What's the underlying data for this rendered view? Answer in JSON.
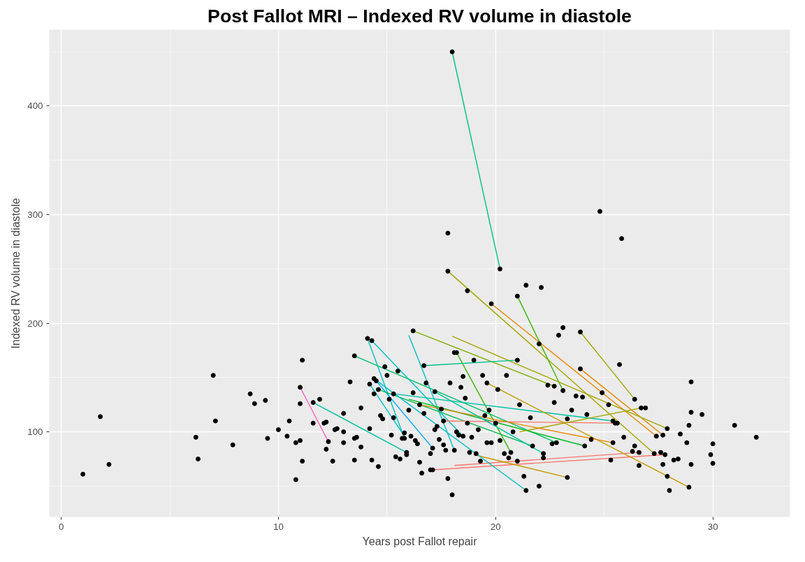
{
  "chart_data": {
    "type": "scatter",
    "title": "Post Fallot MRI – Indexed RV volume in diastole",
    "xlabel": "Years post Fallot repair",
    "ylabel": "Indexed RV volume in diastole",
    "xlim": [
      -0.55,
      33.55
    ],
    "ylim": [
      21.6,
      470.4
    ],
    "xticks": [
      0,
      10,
      20,
      30
    ],
    "yticks": [
      100,
      200,
      300,
      400
    ],
    "grid": true,
    "marker": "none",
    "series": [
      {
        "type": "line",
        "color": "#ff61c3",
        "x": [
          11.0,
          12.3
        ],
        "values": [
          141,
          91
        ]
      },
      {
        "type": "line",
        "color": "#00c08b",
        "x": [
          18.0,
          20.2
        ],
        "values": [
          450,
          250
        ]
      },
      {
        "type": "line",
        "color": "#a3a500",
        "x": [
          17.8,
          27.3
        ],
        "values": [
          248,
          80
        ]
      },
      {
        "type": "line",
        "color": "#e58700",
        "x": [
          19.8,
          27.4
        ],
        "values": [
          218,
          96
        ]
      },
      {
        "type": "line",
        "color": "#39b600",
        "x": [
          21.0,
          23.1
        ],
        "values": [
          225,
          138
        ]
      },
      {
        "type": "line",
        "color": "#a3a500",
        "x": [
          23.9,
          26.4
        ],
        "values": [
          192,
          130
        ]
      },
      {
        "type": "line",
        "color": "#e58700",
        "x": [
          23.9,
          27.7
        ],
        "values": [
          158,
          97
        ]
      },
      {
        "type": "line",
        "color": "#00bfc4",
        "x": [
          14.1,
          15.8
        ],
        "values": [
          186,
          94
        ]
      },
      {
        "type": "line",
        "color": "#00bfc4",
        "x": [
          14.3,
          18.5
        ],
        "values": [
          184,
          96
        ]
      },
      {
        "type": "line",
        "color": "#00bfc4",
        "x": [
          16.0,
          18.1
        ],
        "values": [
          189,
          83
        ]
      },
      {
        "type": "line",
        "color": "#7cae00",
        "x": [
          16.2,
          22.7
        ],
        "values": [
          193,
          142
        ]
      },
      {
        "type": "line",
        "color": "#a3a500",
        "x": [
          18.0,
          27.9
        ],
        "values": [
          188,
          103
        ]
      },
      {
        "type": "line",
        "color": "#39b600",
        "x": [
          18.2,
          20.7
        ],
        "values": [
          173,
          81
        ]
      },
      {
        "type": "line",
        "color": "#00c08b",
        "x": [
          16.7,
          21.0
        ],
        "values": [
          161,
          166
        ]
      },
      {
        "type": "line",
        "color": "#00be67",
        "x": [
          13.5,
          22.8
        ],
        "values": [
          170,
          90
        ]
      },
      {
        "type": "line",
        "color": "#00c1a3",
        "x": [
          11.6,
          15.9
        ],
        "values": [
          127,
          81
        ]
      },
      {
        "type": "line",
        "color": "#00a9ff",
        "x": [
          14.5,
          17.1
        ],
        "values": [
          147,
          85
        ]
      },
      {
        "type": "line",
        "color": "#00bfc4",
        "x": [
          14.2,
          15.8
        ],
        "values": [
          144,
          96
        ]
      },
      {
        "type": "line",
        "color": "#f8766d",
        "x": [
          17.1,
          27.8
        ],
        "values": [
          65,
          79
        ]
      },
      {
        "type": "line",
        "color": "#f8766d",
        "x": [
          18.1,
          26.6
        ],
        "values": [
          69,
          81
        ]
      },
      {
        "type": "line",
        "color": "#c49a00",
        "x": [
          19.0,
          23.3
        ],
        "values": [
          79,
          58
        ]
      },
      {
        "type": "line",
        "color": "#00bb4e",
        "x": [
          14.6,
          21.7
        ],
        "values": [
          139,
          87
        ]
      },
      {
        "type": "line",
        "color": "#00bfc4",
        "x": [
          14.4,
          21.4
        ],
        "values": [
          149,
          46
        ]
      },
      {
        "type": "line",
        "color": "#00c1a3",
        "x": [
          15.3,
          25.4
        ],
        "values": [
          135,
          110
        ]
      },
      {
        "type": "line",
        "color": "#00b81f",
        "x": [
          16.0,
          24.1
        ],
        "values": [
          130,
          87
        ]
      },
      {
        "type": "line",
        "color": "#f8766d",
        "x": [
          17.6,
          25.6
        ],
        "values": [
          110,
          108
        ]
      },
      {
        "type": "line",
        "color": "#c49a00",
        "x": [
          19.6,
          28.9
        ],
        "values": [
          145,
          49
        ]
      },
      {
        "type": "line",
        "color": "#a3a500",
        "x": [
          21.1,
          26.7
        ],
        "values": [
          100,
          122
        ]
      },
      {
        "type": "line",
        "color": "#e58700",
        "x": [
          16.5,
          25.4
        ],
        "values": [
          125,
          90
        ]
      },
      {
        "type": "line",
        "color": "#00c1a3",
        "x": [
          17.2,
          22.2
        ],
        "values": [
          137,
          80
        ]
      },
      {
        "color": "#000000",
        "marker": "circle",
        "x": [
          1.0,
          1.8,
          2.2,
          6.2,
          6.3,
          7.0,
          7.1,
          7.9,
          8.7,
          8.9,
          9.4,
          9.5,
          10.0,
          10.4,
          10.5,
          10.8,
          10.8,
          11.0,
          11.0,
          11.1,
          11.1,
          11.0,
          11.6,
          11.6,
          11.9,
          12.1,
          12.2,
          12.2,
          12.3,
          12.5,
          12.6,
          12.7,
          13.0,
          13.0,
          13.0,
          13.3,
          13.5,
          13.5,
          13.6,
          13.8,
          13.8,
          14.1,
          14.2,
          14.3,
          14.3,
          14.4,
          14.6,
          14.7,
          14.8,
          14.9,
          15.0,
          15.1,
          15.2,
          15.3,
          15.4,
          15.5,
          15.6,
          15.7,
          15.8,
          15.9,
          16.0,
          16.1,
          16.2,
          16.3,
          16.4,
          16.5,
          16.6,
          16.7,
          16.8,
          17.0,
          17.0,
          17.2,
          17.3,
          17.4,
          17.5,
          17.6,
          17.7,
          17.8,
          17.8,
          17.9,
          18.0,
          18.1,
          18.2,
          18.3,
          18.4,
          18.5,
          18.6,
          18.7,
          18.8,
          18.9,
          19.0,
          19.1,
          19.2,
          19.3,
          19.4,
          19.5,
          19.6,
          19.7,
          19.8,
          20.0,
          20.1,
          20.2,
          20.4,
          20.5,
          20.6,
          20.8,
          21.0,
          21.1,
          21.3,
          21.4,
          21.6,
          22.0,
          22.0,
          22.1,
          22.2,
          22.4,
          22.6,
          22.7,
          22.9,
          23.1,
          23.3,
          23.5,
          23.7,
          24.0,
          24.2,
          24.4,
          24.8,
          24.9,
          25.2,
          25.3,
          25.5,
          25.8,
          25.9,
          25.7,
          26.3,
          26.4,
          27.6,
          27.9,
          28.0,
          28.2,
          28.4,
          28.5,
          28.8,
          28.9,
          29.0,
          29.0,
          29.0,
          29.5,
          29.9,
          30.0,
          30.0,
          31.0,
          32.0,
          27.7,
          26.6,
          26.9,
          18.0,
          20.2,
          17.8,
          27.3,
          19.8,
          27.4,
          21.0,
          23.1,
          23.9,
          26.4,
          23.9,
          27.7,
          15.8,
          18.5,
          18.1,
          16.2,
          22.7,
          27.9,
          18.2,
          20.7,
          16.7,
          21.0,
          13.5,
          22.8,
          15.9,
          14.5,
          17.1,
          14.2,
          17.1,
          27.8,
          26.6,
          23.3,
          14.6,
          21.7,
          14.4,
          21.4,
          15.3,
          25.4,
          24.1,
          17.6,
          25.6,
          19.6,
          28.9,
          26.7,
          16.5,
          25.4,
          17.2,
          22.2,
          18.7
        ],
        "values": [
          61,
          114,
          70,
          95,
          75,
          152,
          110,
          88,
          135,
          126,
          129,
          94,
          102,
          96,
          110,
          56,
          90,
          126,
          92,
          73,
          166,
          141,
          108,
          127,
          130,
          108,
          109,
          84,
          91,
          73,
          102,
          103,
          90,
          117,
          100,
          146,
          94,
          74,
          95,
          86,
          122,
          186,
          103,
          184,
          74,
          135,
          68,
          115,
          112,
          160,
          152,
          130,
          97,
          113,
          77,
          156,
          75,
          94,
          99,
          79,
          120,
          96,
          136,
          92,
          89,
          72,
          62,
          117,
          145,
          80,
          65,
          102,
          105,
          93,
          121,
          88,
          83,
          57,
          283,
          145,
          42,
          173,
          100,
          97,
          141,
          151,
          131,
          108,
          81,
          95,
          166,
          80,
          102,
          73,
          152,
          115,
          90,
          120,
          90,
          108,
          139,
          92,
          80,
          152,
          76,
          100,
          73,
          125,
          59,
          235,
          113,
          50,
          181,
          233,
          76,
          143,
          89,
          127,
          189,
          196,
          112,
          120,
          133,
          132,
          116,
          93,
          303,
          136,
          125,
          74,
          108,
          278,
          95,
          162,
          82,
          87,
          81,
          59,
          46,
          74,
          75,
          98,
          90,
          106,
          70,
          146,
          118,
          116,
          79,
          89,
          71,
          106,
          95,
          70,
          69,
          122,
          450,
          250,
          248,
          80,
          218,
          96,
          225,
          138,
          192,
          130,
          158,
          97,
          94,
          96,
          83,
          193,
          142,
          103,
          173,
          81,
          161,
          166,
          170,
          90,
          81,
          147,
          85,
          144,
          65,
          79,
          81,
          58,
          139,
          87,
          149,
          46,
          135,
          110,
          87,
          110,
          108,
          145,
          49,
          122,
          125,
          90,
          137,
          80,
          230
        ]
      }
    ]
  }
}
